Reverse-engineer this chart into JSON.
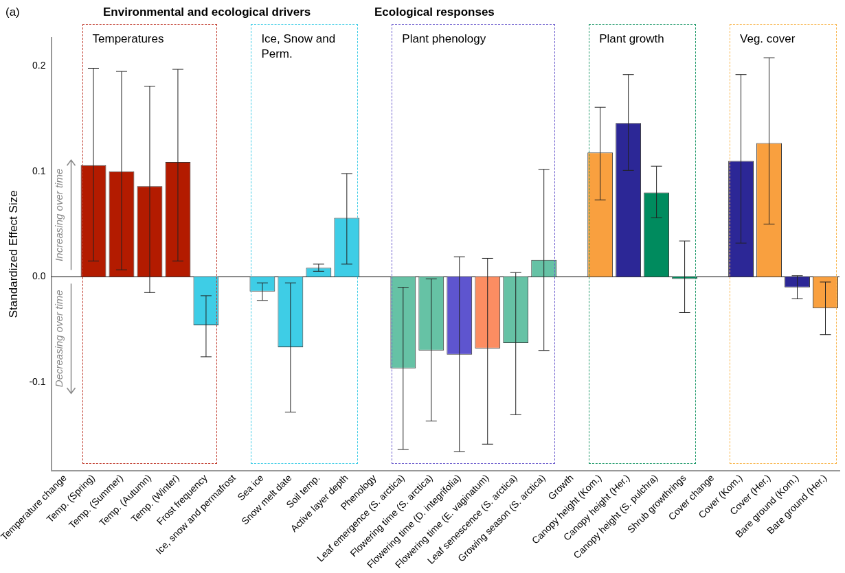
{
  "chart_data": {
    "type": "bar",
    "ylabel": "Standardized Effect Size",
    "categories": [
      "Temperature change",
      "Temp. (Spring)",
      "Temp. (Summer)",
      "Temp. (Autumn)",
      "Temp. (Winter)",
      "Frost frequency",
      "Ice, snow and permafrost",
      "Sea ice",
      "Snow melt date",
      "Soil temp.",
      "Active layer depth",
      "Phenology",
      "Leaf emergence (S. arctica)",
      "Flowering time (S. arctica)",
      "Flowering time (D. integrifolia)",
      "Flowering time (E. vaginatum)",
      "Leaf senescence (S. arctica)",
      "Growing season (S. arctica)",
      "Growth",
      "Canopy height (Kom.)",
      "Canopy height (Her.)",
      "Canopy height (S. pulchra)",
      "Shrub growthrings",
      "Cover change",
      "Cover (Kom.)",
      "Cover (Her.)",
      "Bare ground (Kom.)",
      "Bare ground (Her.)"
    ],
    "values": [
      null,
      0.106,
      0.1,
      0.086,
      0.109,
      -0.046,
      null,
      -0.014,
      -0.067,
      0.0085,
      0.056,
      null,
      -0.087,
      -0.07,
      -0.074,
      -0.068,
      -0.063,
      0.016,
      null,
      0.118,
      0.146,
      0.08,
      -0.002,
      null,
      0.11,
      0.127,
      -0.01,
      -0.03
    ],
    "colors": [
      "#b31b00",
      "#b31b00",
      "#b31b00",
      "#b31b00",
      "#b31b00",
      "#3ecde6",
      "#3ecde6",
      "#3ecde6",
      "#3ecde6",
      "#3ecde6",
      "#3ecde6",
      "#66c2a5",
      "#66c2a5",
      "#66c2a5",
      "#5e55cf",
      "#fc8d62",
      "#66c2a5",
      "#66c2a5",
      "#008b5e",
      "#f9a03f",
      "#2c2796",
      "#008b5e",
      "#008b5e",
      "#2c2796",
      "#2c2796",
      "#f9a03f",
      "#2c2796",
      "#f9a03f"
    ],
    "errors": [
      null,
      [
        0.015,
        0.198
      ],
      [
        0.0066,
        0.195
      ],
      [
        -0.015,
        0.181
      ],
      [
        0.015,
        0.197
      ],
      [
        -0.076,
        -0.018
      ],
      null,
      [
        -0.0225,
        -0.0058
      ],
      [
        -0.1285,
        -0.0058
      ],
      [
        0.0052,
        0.012
      ],
      [
        0.012,
        0.098
      ],
      null,
      [
        -0.164,
        -0.01
      ],
      [
        -0.137,
        -0.002
      ],
      [
        -0.166,
        0.019
      ],
      [
        -0.159,
        0.0175
      ],
      [
        -0.131,
        0.004
      ],
      [
        -0.07,
        0.102
      ],
      null,
      [
        0.073,
        0.161
      ],
      [
        0.101,
        0.192
      ],
      [
        0.056,
        0.105
      ],
      [
        -0.034,
        0.034
      ],
      null,
      [
        0.032,
        0.192
      ],
      [
        0.05,
        0.208
      ],
      [
        -0.021,
        0.001
      ],
      [
        -0.055,
        -0.005
      ]
    ],
    "ylim": [
      -0.184,
      0.227
    ],
    "yticks": [
      {
        "value": -0.1,
        "label": "-0.1"
      },
      {
        "value": 0,
        "label": "0.0"
      },
      {
        "value": 0.1,
        "label": "0.1"
      },
      {
        "value": 0.2,
        "label": "0.2"
      }
    ],
    "grid": false,
    "legend": false,
    "ref_lines": [
      {
        "axis": "y",
        "value": 0,
        "color": "#000000"
      }
    ],
    "annotations": [
      "(a)",
      "Environmental and ecological drivers",
      "Ecological responses",
      "Increasing over time",
      "Decreasing over time",
      "Temperatures",
      "Ice, Snow and Perm.",
      "Plant phenology",
      "Plant growth",
      "Veg. cover"
    ]
  }
}
